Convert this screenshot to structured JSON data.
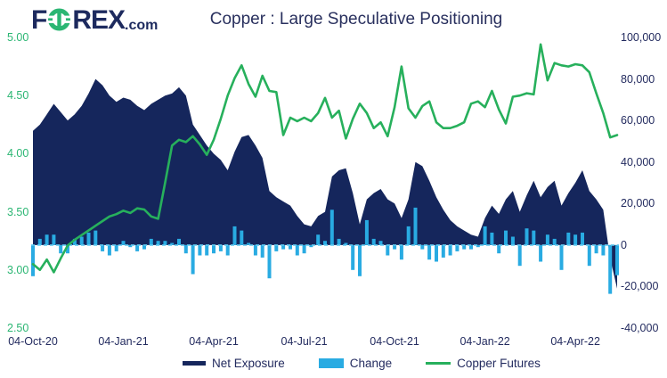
{
  "header": {
    "logo": {
      "part1": "F",
      "part2": "REX",
      "suffix": ".com"
    },
    "title": "Copper : Large Speculative Positioning"
  },
  "legend": {
    "items": [
      "Net Exposure",
      "Change",
      "Copper Futures"
    ]
  },
  "chart_data": {
    "type": "combo",
    "title": "Copper : Large Speculative Positioning",
    "frequency": "weekly",
    "points": 85,
    "x_tick_labels": [
      "04-Oct-20",
      "04-Jan-21",
      "04-Apr-21",
      "04-Jul-21",
      "04-Oct-21",
      "04-Jan-22",
      "04-Apr-22"
    ],
    "x_tick_indices": [
      0,
      13,
      26,
      39,
      52,
      65,
      78
    ],
    "left_axis": {
      "min": 2.5,
      "max": 5.0,
      "ticks": [
        "5.00",
        "4.50",
        "4.00",
        "3.50",
        "3.00",
        "2.50"
      ],
      "label_color": "#2bb673"
    },
    "right_axis": {
      "min": -40000,
      "max": 100000,
      "ticks": [
        "100,000",
        "80,000",
        "60,000",
        "40,000",
        "20,000",
        "0",
        "-20,000",
        "-40,000"
      ],
      "label_color": "#232b5f"
    },
    "zero_line": {
      "style": "dashed",
      "color": "#5fc8ef"
    },
    "grid": false,
    "legend_position": "bottom",
    "series": [
      {
        "name": "Net Exposure",
        "type": "area",
        "axis": "right",
        "color": "#15265c",
        "values": [
          55000,
          58000,
          63000,
          68000,
          64000,
          60000,
          63000,
          67000,
          73000,
          80000,
          77000,
          72000,
          69000,
          71000,
          70000,
          67000,
          65000,
          68000,
          70000,
          72000,
          73000,
          76000,
          72000,
          58000,
          53000,
          48000,
          44000,
          41000,
          36000,
          45000,
          52000,
          53000,
          48000,
          42000,
          26000,
          23000,
          21000,
          19000,
          14000,
          10000,
          9000,
          14000,
          16000,
          33000,
          36000,
          37000,
          25000,
          10000,
          22000,
          25000,
          27000,
          22000,
          20000,
          13000,
          22000,
          40000,
          38000,
          31000,
          23000,
          17000,
          12000,
          9000,
          7000,
          5000,
          4000,
          13000,
          19000,
          15000,
          22000,
          26000,
          16000,
          24000,
          31000,
          23000,
          28000,
          31000,
          19000,
          25000,
          30000,
          36000,
          26000,
          22000,
          17000,
          -6500,
          -21000
        ]
      },
      {
        "name": "Change",
        "type": "bar",
        "axis": "right",
        "color": "#29abe2",
        "values": [
          -15000,
          3000,
          5000,
          5000,
          -4000,
          -4000,
          3000,
          4000,
          6000,
          7000,
          -3000,
          -5000,
          -3000,
          2000,
          -1000,
          -3000,
          -2000,
          3000,
          2000,
          2000,
          1000,
          3000,
          -4000,
          -14000,
          -5000,
          -5000,
          -4000,
          -3000,
          -5000,
          9000,
          7000,
          1000,
          -5000,
          -6000,
          -16000,
          -3000,
          -2000,
          -2000,
          -5000,
          -4000,
          -1000,
          5000,
          2000,
          17000,
          3000,
          1000,
          -12000,
          -15000,
          12000,
          3000,
          2000,
          -5000,
          -2000,
          -7000,
          9000,
          18000,
          -2000,
          -7000,
          -8000,
          -6000,
          -5000,
          -3000,
          -2000,
          -2000,
          -1000,
          9000,
          6000,
          -4000,
          7000,
          4000,
          -10000,
          8000,
          7000,
          -8000,
          5000,
          3000,
          -12000,
          6000,
          5000,
          6000,
          -10000,
          -4000,
          -5000,
          -23500,
          -14500
        ]
      },
      {
        "name": "Copper Futures",
        "type": "line",
        "axis": "left",
        "color": "#27b05c",
        "values": [
          3.05,
          3.0,
          3.09,
          2.98,
          3.1,
          3.21,
          3.26,
          3.3,
          3.34,
          3.38,
          3.42,
          3.46,
          3.48,
          3.51,
          3.49,
          3.53,
          3.52,
          3.46,
          3.44,
          3.75,
          4.07,
          4.12,
          4.1,
          4.15,
          4.08,
          3.99,
          4.12,
          4.3,
          4.5,
          4.65,
          4.76,
          4.6,
          4.49,
          4.67,
          4.54,
          4.53,
          4.16,
          4.31,
          4.28,
          4.31,
          4.28,
          4.35,
          4.48,
          4.31,
          4.37,
          4.13,
          4.3,
          4.43,
          4.35,
          4.22,
          4.27,
          4.15,
          4.4,
          4.75,
          4.39,
          4.31,
          4.41,
          4.45,
          4.27,
          4.22,
          4.22,
          4.24,
          4.27,
          4.43,
          4.45,
          4.4,
          4.54,
          4.38,
          4.26,
          4.49,
          4.5,
          4.52,
          4.51,
          4.94,
          4.63,
          4.78,
          4.76,
          4.75,
          4.77,
          4.76,
          4.7,
          4.52,
          4.35,
          4.14,
          4.16
        ]
      }
    ]
  }
}
